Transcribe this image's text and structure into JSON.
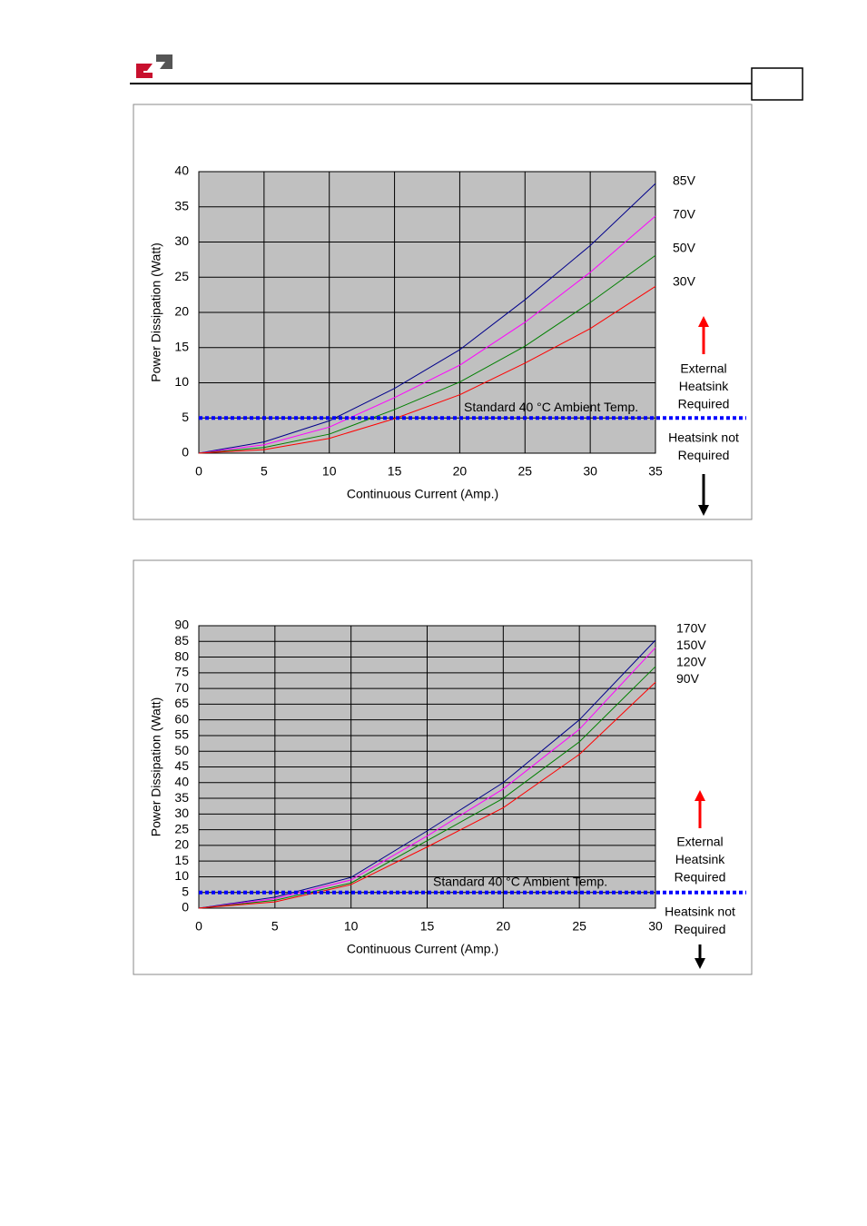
{
  "chart_data": [
    {
      "type": "line",
      "x": [
        0,
        5,
        10,
        15,
        20,
        25,
        30,
        35
      ],
      "series": [
        {
          "name": "85V",
          "color": "#00008b",
          "values": [
            0,
            1.6,
            4.6,
            9.2,
            14.7,
            21.8,
            29.5,
            38.3
          ]
        },
        {
          "name": "70V",
          "color": "#ff00ff",
          "values": [
            0,
            1.2,
            3.7,
            7.9,
            12.5,
            18.6,
            25.7,
            33.7
          ]
        },
        {
          "name": "50V",
          "color": "#008000",
          "values": [
            0,
            0.8,
            2.7,
            6.2,
            10.1,
            15.2,
            21.4,
            28.1
          ]
        },
        {
          "name": "30V",
          "color": "#ff0000",
          "values": [
            0,
            0.5,
            2.1,
            4.9,
            8.3,
            12.8,
            17.7,
            23.7
          ]
        }
      ],
      "xlim": [
        0,
        35
      ],
      "xticks": [
        0,
        5,
        10,
        15,
        20,
        25,
        30,
        35
      ],
      "ylim": [
        0,
        40
      ],
      "yticks": [
        0,
        5,
        10,
        15,
        20,
        25,
        30,
        35,
        40
      ],
      "grid": true,
      "x_label": "Continuous Current (Amp.)",
      "y_label": "Power Dissipation (Watt)",
      "threshold": 5,
      "threshold_color": "#0000ff",
      "threshold_label": "Standard 40 °C Ambient Temp.",
      "above_label": [
        "External",
        "Heatsink",
        "Required"
      ],
      "below_label": [
        "Heatsink not",
        "Required"
      ]
    },
    {
      "type": "line",
      "x": [
        0,
        5,
        10,
        15,
        20,
        25,
        30
      ],
      "series": [
        {
          "name": "170V",
          "color": "#00008b",
          "values": [
            0,
            3.5,
            9.8,
            24.6,
            40,
            60,
            85.4
          ]
        },
        {
          "name": "150V",
          "color": "#ff00ff",
          "values": [
            0,
            3,
            9,
            23,
            38,
            57,
            83
          ]
        },
        {
          "name": "120V",
          "color": "#008000",
          "values": [
            0,
            2.5,
            8,
            21.5,
            35,
            53,
            77
          ]
        },
        {
          "name": "90V",
          "color": "#ff0000",
          "values": [
            0,
            2,
            7.5,
            19.5,
            32,
            49,
            72
          ]
        }
      ],
      "xlim": [
        0,
        30
      ],
      "xticks": [
        0,
        5,
        10,
        15,
        20,
        25,
        30
      ],
      "ylim": [
        0,
        90
      ],
      "yticks": [
        0,
        5,
        10,
        15,
        20,
        25,
        30,
        35,
        40,
        45,
        50,
        55,
        60,
        65,
        70,
        75,
        80,
        85,
        90
      ],
      "grid": true,
      "x_label": "Continuous Current (Amp.)",
      "y_label": "Power Dissipation (Watt)",
      "threshold": 5,
      "threshold_color": "#0000ff",
      "threshold_label": "Standard 40 °C Ambient Temp.",
      "above_label": [
        "External",
        "Heatsink",
        "Required"
      ],
      "below_label": [
        "Heatsink not",
        "Required"
      ]
    }
  ]
}
